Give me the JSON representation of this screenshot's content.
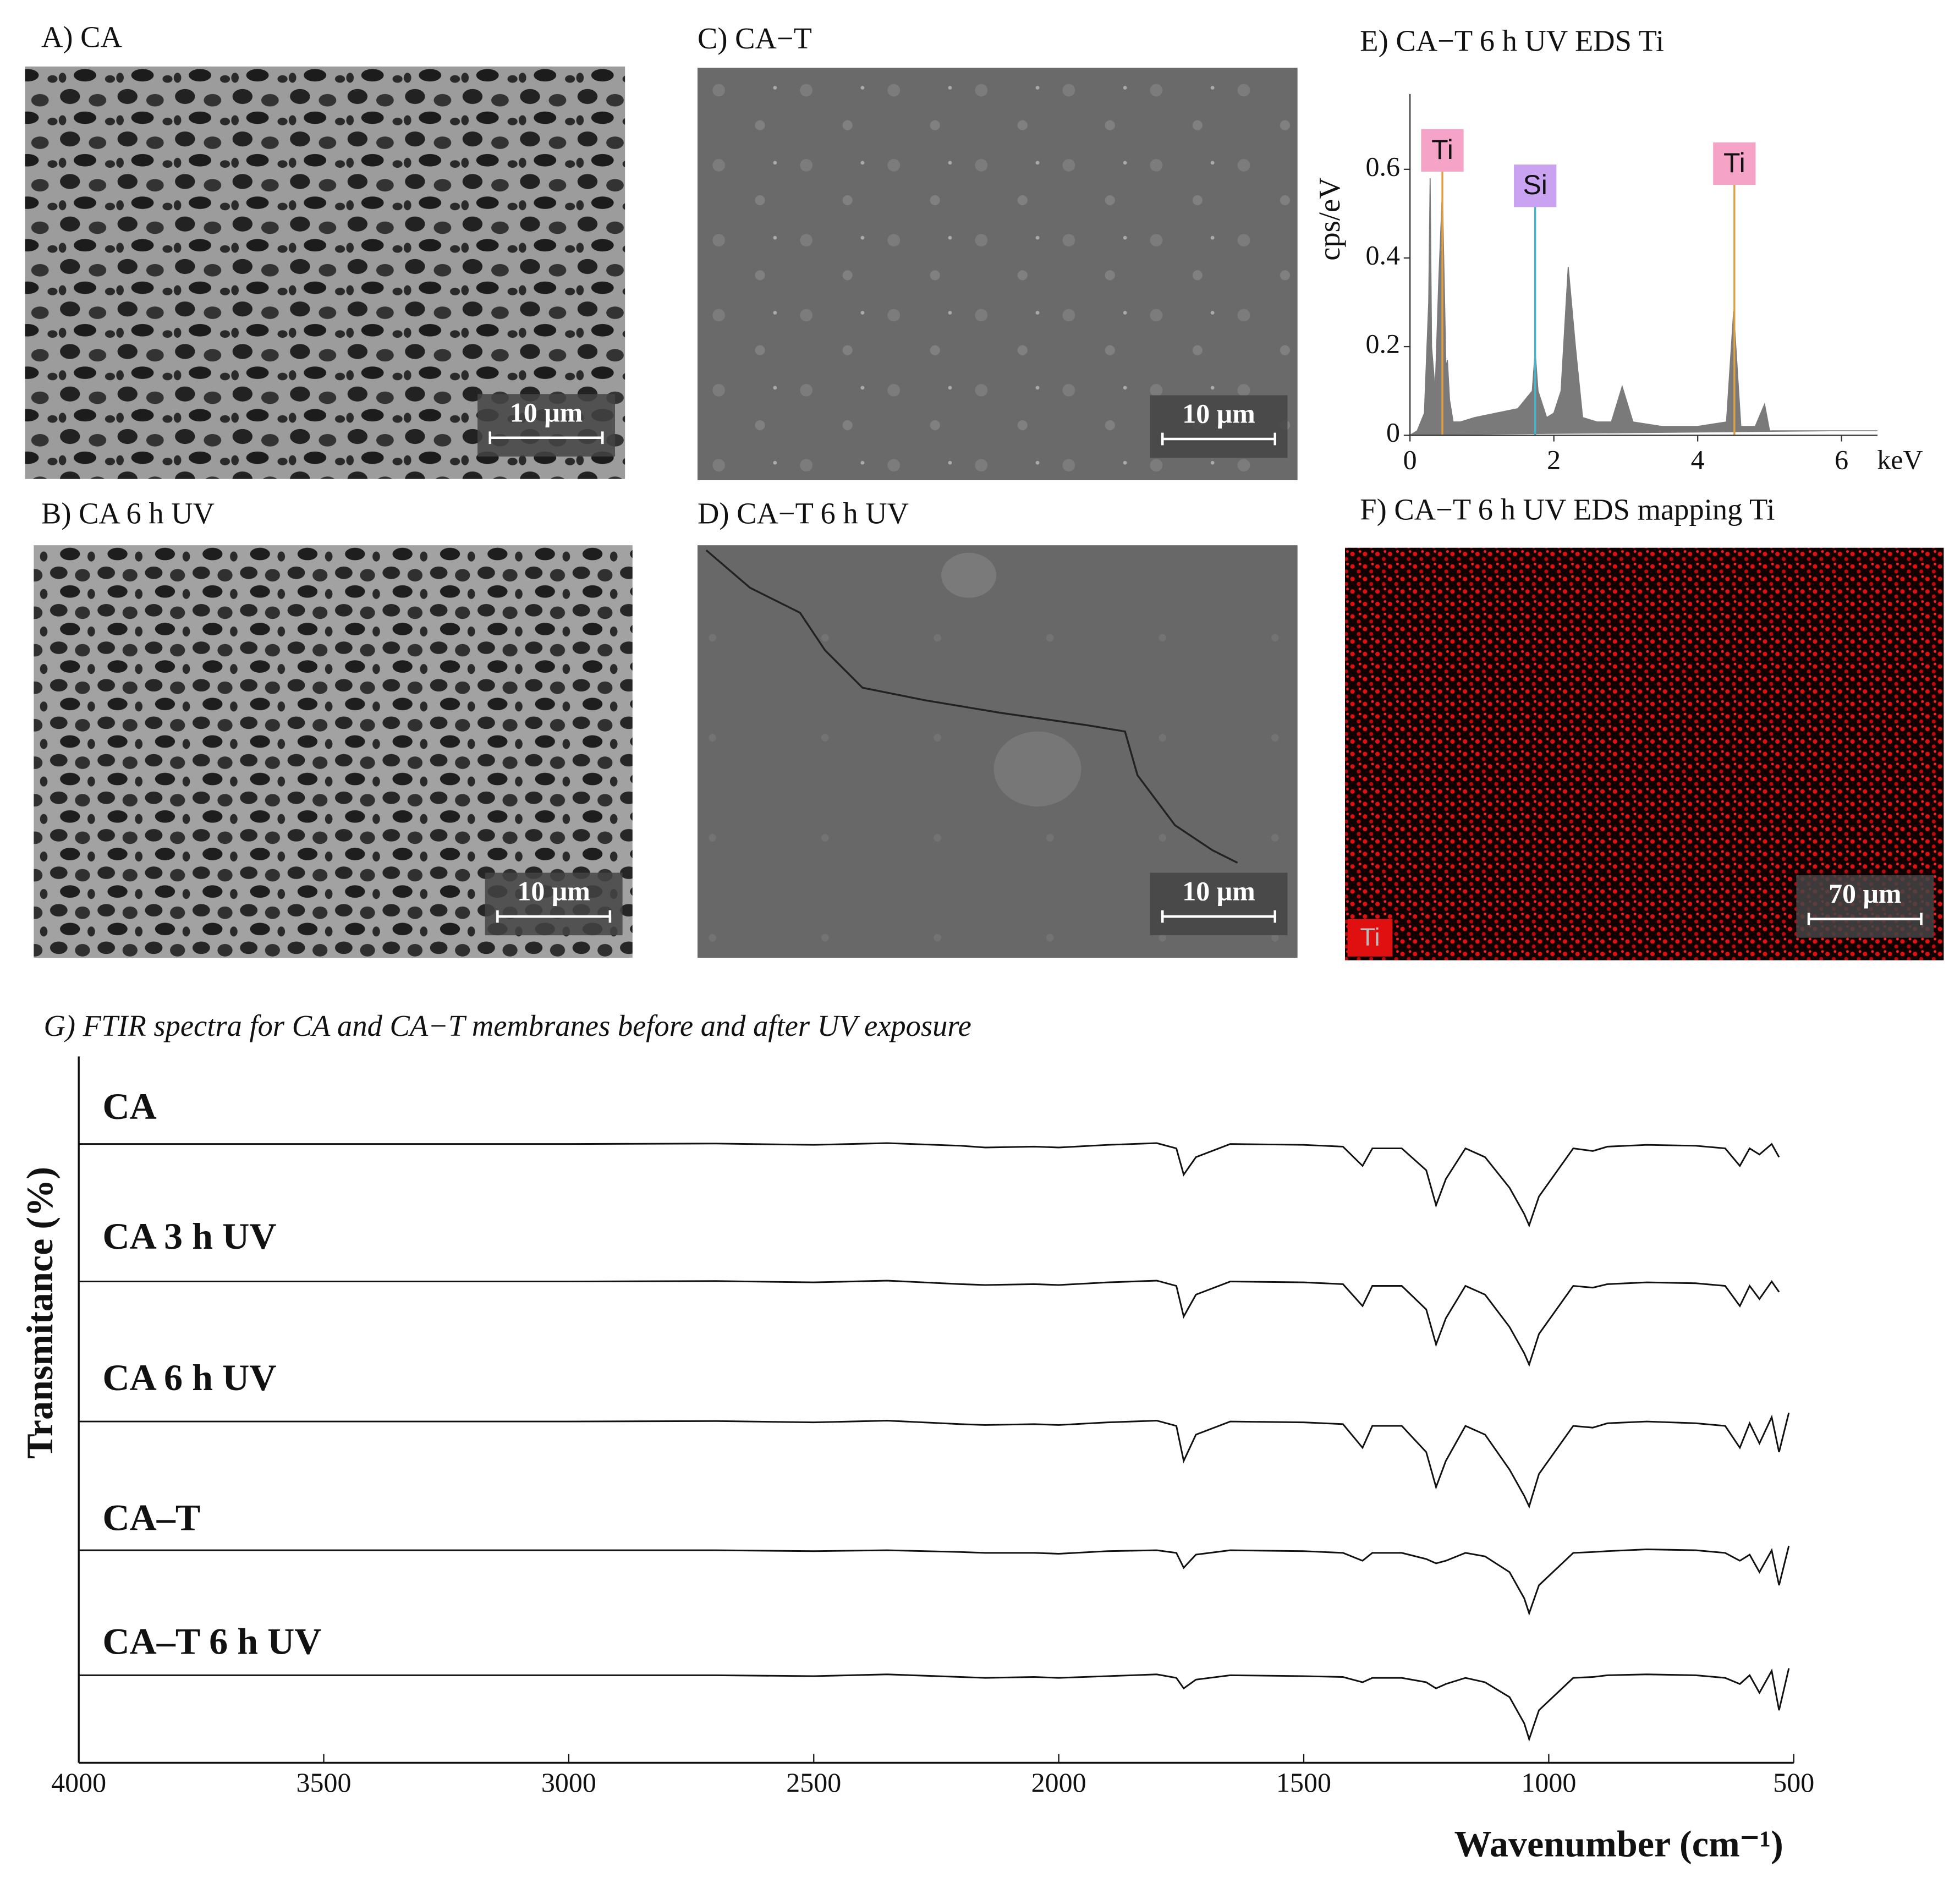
{
  "panels": [
    {
      "label": "A) CA",
      "scale_bar": "10 μm"
    },
    {
      "label": "B) CA 6 h UV",
      "scale_bar": "10 μm"
    },
    {
      "label": "C) CA−T",
      "scale_bar": "10 μm"
    },
    {
      "label": "D) CA−T 6 h UV",
      "scale_bar": "10 μm"
    },
    {
      "label": "F) CA−T 6 h UV EDS mapping Ti",
      "scale_bar": "70 μm",
      "map_label": "Ti"
    }
  ],
  "chart_data": [
    {
      "type": "area",
      "title": "E) CA−T 6 h UV EDS Ti",
      "y_label": "cps/eV",
      "x_unit": "keV",
      "color": "#7a7a7a",
      "x": [
        0,
        0.1,
        0.2,
        0.26,
        0.28,
        0.3,
        0.35,
        0.4,
        0.45,
        0.5,
        0.52,
        0.55,
        0.6,
        0.7,
        0.9,
        1.2,
        1.5,
        1.7,
        1.74,
        1.78,
        1.9,
        2.0,
        2.1,
        2.2,
        2.3,
        2.4,
        2.6,
        2.8,
        2.95,
        3.1,
        3.5,
        4.0,
        4.4,
        4.5,
        4.6,
        4.8,
        4.93,
        5.0,
        5.5,
        6.0,
        6.5
      ],
      "values": [
        0,
        0.01,
        0.05,
        0.3,
        0.58,
        0.2,
        0.1,
        0.35,
        0.55,
        0.15,
        0.17,
        0.08,
        0.03,
        0.03,
        0.04,
        0.05,
        0.06,
        0.1,
        0.19,
        0.1,
        0.04,
        0.05,
        0.1,
        0.38,
        0.2,
        0.04,
        0.03,
        0.03,
        0.11,
        0.03,
        0.02,
        0.02,
        0.03,
        0.28,
        0.02,
        0.02,
        0.07,
        0.01,
        0.01,
        0.01,
        0.01
      ],
      "xlim": [
        0,
        6.5
      ],
      "ylim": [
        0,
        0.77
      ],
      "xticks": [
        0,
        2,
        4,
        6
      ],
      "yticks": [
        0,
        0.2,
        0.4,
        0.6
      ],
      "peaks": [
        {
          "label": "Ti",
          "x": 0.45,
          "height": 0.64,
          "line_color": "#e0a040",
          "box_color": "#f5a3c7"
        },
        {
          "label": "Si",
          "x": 1.74,
          "height": 0.56,
          "line_color": "#3fb6cf",
          "box_color": "#c9a3f2"
        },
        {
          "label": "Ti",
          "x": 4.51,
          "height": 0.61,
          "line_color": "#e0a040",
          "box_color": "#f5a3c7"
        }
      ]
    },
    {
      "type": "line",
      "title": "G) FTIR spectra for CA and CA−T membranes before and after UV exposure",
      "x_label": "Wavenumber (cm⁻¹)",
      "y_label": "Transmitance (%)",
      "xlim": [
        4000,
        500
      ],
      "ylim": [
        0,
        100
      ],
      "xticks": [
        4000,
        3500,
        3000,
        2500,
        2000,
        1500,
        1000,
        500
      ],
      "x": [
        4000,
        3500,
        3000,
        2700,
        2500,
        2350,
        2200,
        2150,
        2050,
        2000,
        1900,
        1800,
        1760,
        1745,
        1720,
        1650,
        1500,
        1420,
        1380,
        1360,
        1300,
        1250,
        1230,
        1210,
        1170,
        1130,
        1080,
        1050,
        1040,
        1020,
        950,
        910,
        880,
        800,
        700,
        640,
        610,
        590,
        570,
        545,
        530,
        510
      ],
      "series": [
        {
          "name": "CA",
          "color": "#111111",
          "values": [
            100,
            100,
            100,
            100.5,
            99,
            101,
            98,
            96,
            97,
            96,
            99,
            101,
            95,
            65,
            85,
            100,
            99,
            97,
            75,
            95,
            95,
            70,
            30,
            60,
            95,
            85,
            50,
            20,
            7,
            40,
            95,
            92,
            97,
            99,
            98,
            95,
            75,
            95,
            88,
            100,
            85,
            null
          ]
        },
        {
          "name": "CA 3 h UV",
          "color": "#111111",
          "values": [
            100,
            100,
            100,
            100.5,
            99,
            101,
            97,
            96,
            97,
            96,
            99,
            101,
            95,
            60,
            85,
            100,
            99,
            97,
            72,
            95,
            95,
            68,
            28,
            58,
            95,
            85,
            48,
            18,
            5,
            40,
            95,
            93,
            97,
            99,
            98,
            95,
            72,
            95,
            80,
            100,
            88,
            null
          ]
        },
        {
          "name": "CA 6 h UV",
          "color": "#111111",
          "values": [
            100,
            100,
            100,
            100.5,
            99,
            101,
            97,
            96,
            97,
            96,
            99,
            101,
            95,
            55,
            85,
            100,
            99,
            97,
            70,
            95,
            95,
            65,
            25,
            55,
            95,
            85,
            45,
            15,
            3,
            40,
            95,
            93,
            98,
            100,
            98,
            95,
            70,
            98,
            75,
            105,
            65,
            110
          ]
        },
        {
          "name": "CA–T",
          "color": "#111111",
          "values": [
            100,
            100,
            100,
            100,
            99,
            100,
            98,
            97,
            97,
            96,
            99,
            100,
            97,
            80,
            95,
            100,
            99,
            97,
            88,
            97,
            97,
            90,
            85,
            88,
            97,
            93,
            75,
            45,
            28,
            60,
            97,
            98,
            99,
            101,
            100,
            97,
            88,
            95,
            75,
            100,
            60,
            105
          ]
        },
        {
          "name": "CA–T 6 h UV",
          "color": "#111111",
          "values": [
            100,
            100,
            100,
            100,
            99,
            101,
            98,
            97,
            98,
            97,
            99,
            101,
            97,
            85,
            95,
            100,
            99,
            98,
            92,
            97,
            97,
            92,
            85,
            90,
            97,
            92,
            75,
            45,
            27,
            60,
            97,
            98,
            100,
            101,
            100,
            97,
            90,
            100,
            80,
            105,
            60,
            108
          ]
        }
      ]
    }
  ]
}
